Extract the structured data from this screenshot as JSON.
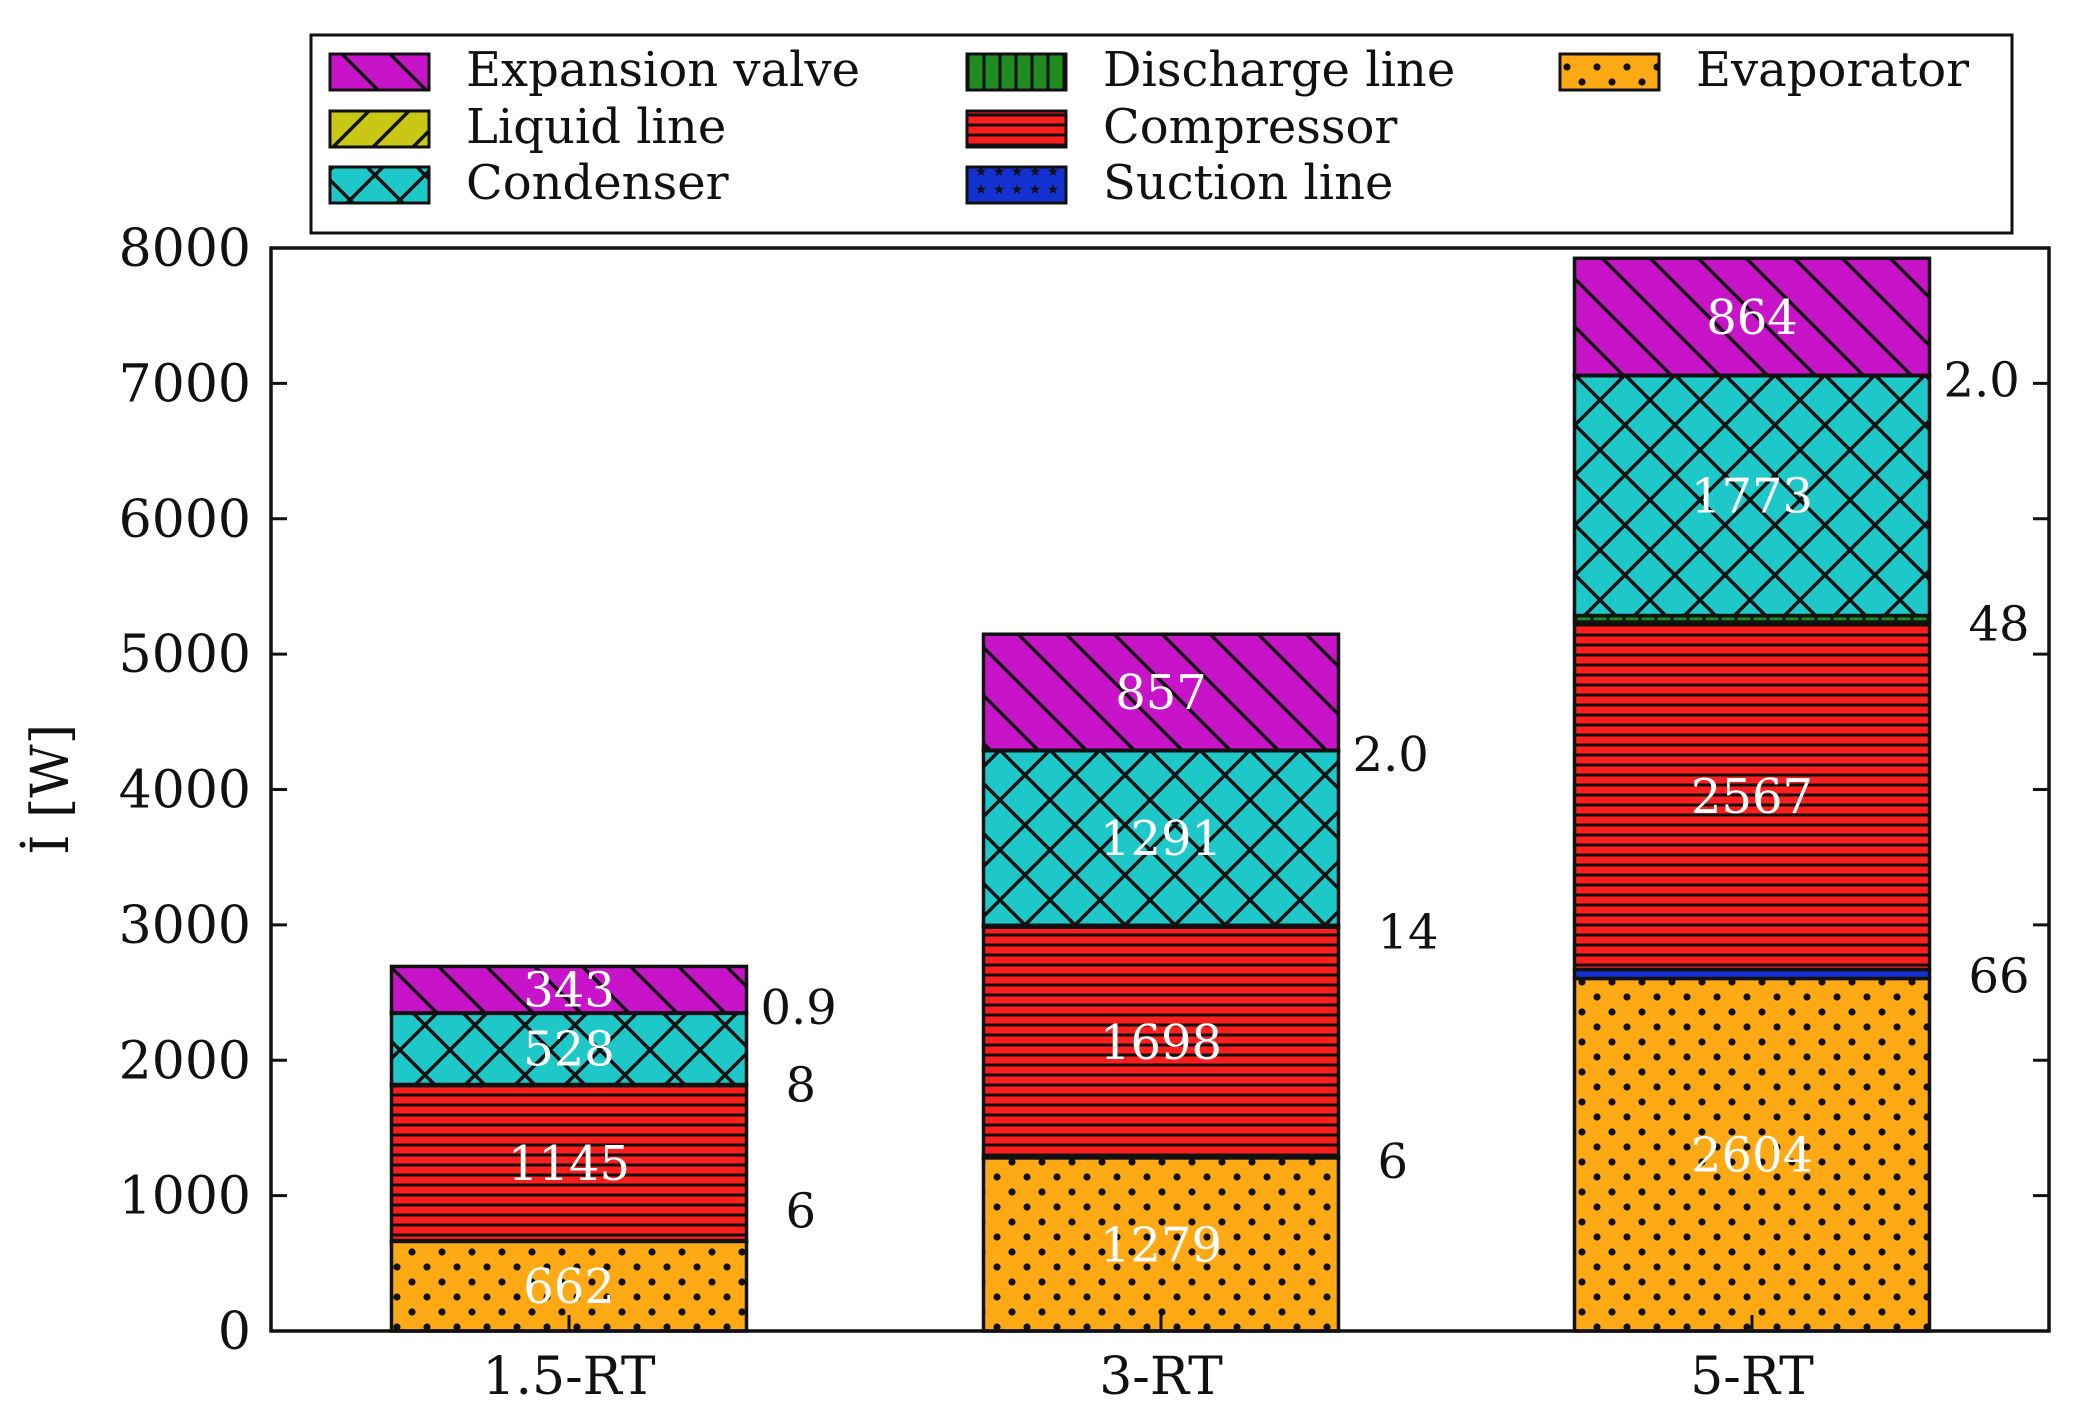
{
  "chart_data": {
    "type": "bar",
    "stacked": true,
    "title": "",
    "xlabel": "",
    "ylabel": "İ [W]",
    "ylim": [
      0,
      8000
    ],
    "yticks": [
      "0",
      "1000",
      "2000",
      "3000",
      "4000",
      "5000",
      "6000",
      "7000",
      "8000"
    ],
    "categories": [
      "1.5-RT",
      "3-RT",
      "5-RT"
    ],
    "legend_position": "top",
    "series": [
      {
        "name": "Evaporator",
        "values": [
          662,
          1279,
          2604
        ],
        "color": "#ffaa14",
        "pattern": "dots",
        "labels": [
          "662",
          "1279",
          "2604"
        ]
      },
      {
        "name": "Suction line",
        "values": [
          6,
          6,
          66
        ],
        "color": "#1432d2",
        "pattern": "stars",
        "labels": [
          "6",
          "6",
          "66"
        ]
      },
      {
        "name": "Compressor",
        "values": [
          1145,
          1698,
          2567
        ],
        "color": "#ff1e1e",
        "pattern": "hlines",
        "labels": [
          "1145",
          "1698",
          "2567"
        ]
      },
      {
        "name": "Discharge line",
        "values": [
          8,
          14,
          48
        ],
        "color": "#1e8c1e",
        "pattern": "vlines",
        "labels": [
          "8",
          "14",
          "48"
        ]
      },
      {
        "name": "Condenser",
        "values": [
          528,
          1291,
          1773
        ],
        "color": "#1ec8c8",
        "pattern": "cross",
        "labels": [
          "528",
          "1291",
          "1773"
        ]
      },
      {
        "name": "Liquid line",
        "values": [
          0.9,
          2.0,
          2.0
        ],
        "color": "#c8c814",
        "pattern": "fslash",
        "labels": [
          "0.9",
          "2.0",
          "2.0"
        ]
      },
      {
        "name": "Expansion valve",
        "values": [
          343,
          857,
          864
        ],
        "color": "#c814c8",
        "pattern": "bslash",
        "labels": [
          "343",
          "857",
          "864"
        ]
      }
    ],
    "legend_order": [
      "Expansion valve",
      "Liquid line",
      "Condenser",
      "Discharge line",
      "Compressor",
      "Suction line",
      "Evaporator"
    ],
    "inside_labels": [
      "Evaporator",
      "Compressor",
      "Condenser",
      "Expansion valve"
    ],
    "side_labels": [
      "Suction line",
      "Discharge line",
      "Liquid line"
    ]
  }
}
